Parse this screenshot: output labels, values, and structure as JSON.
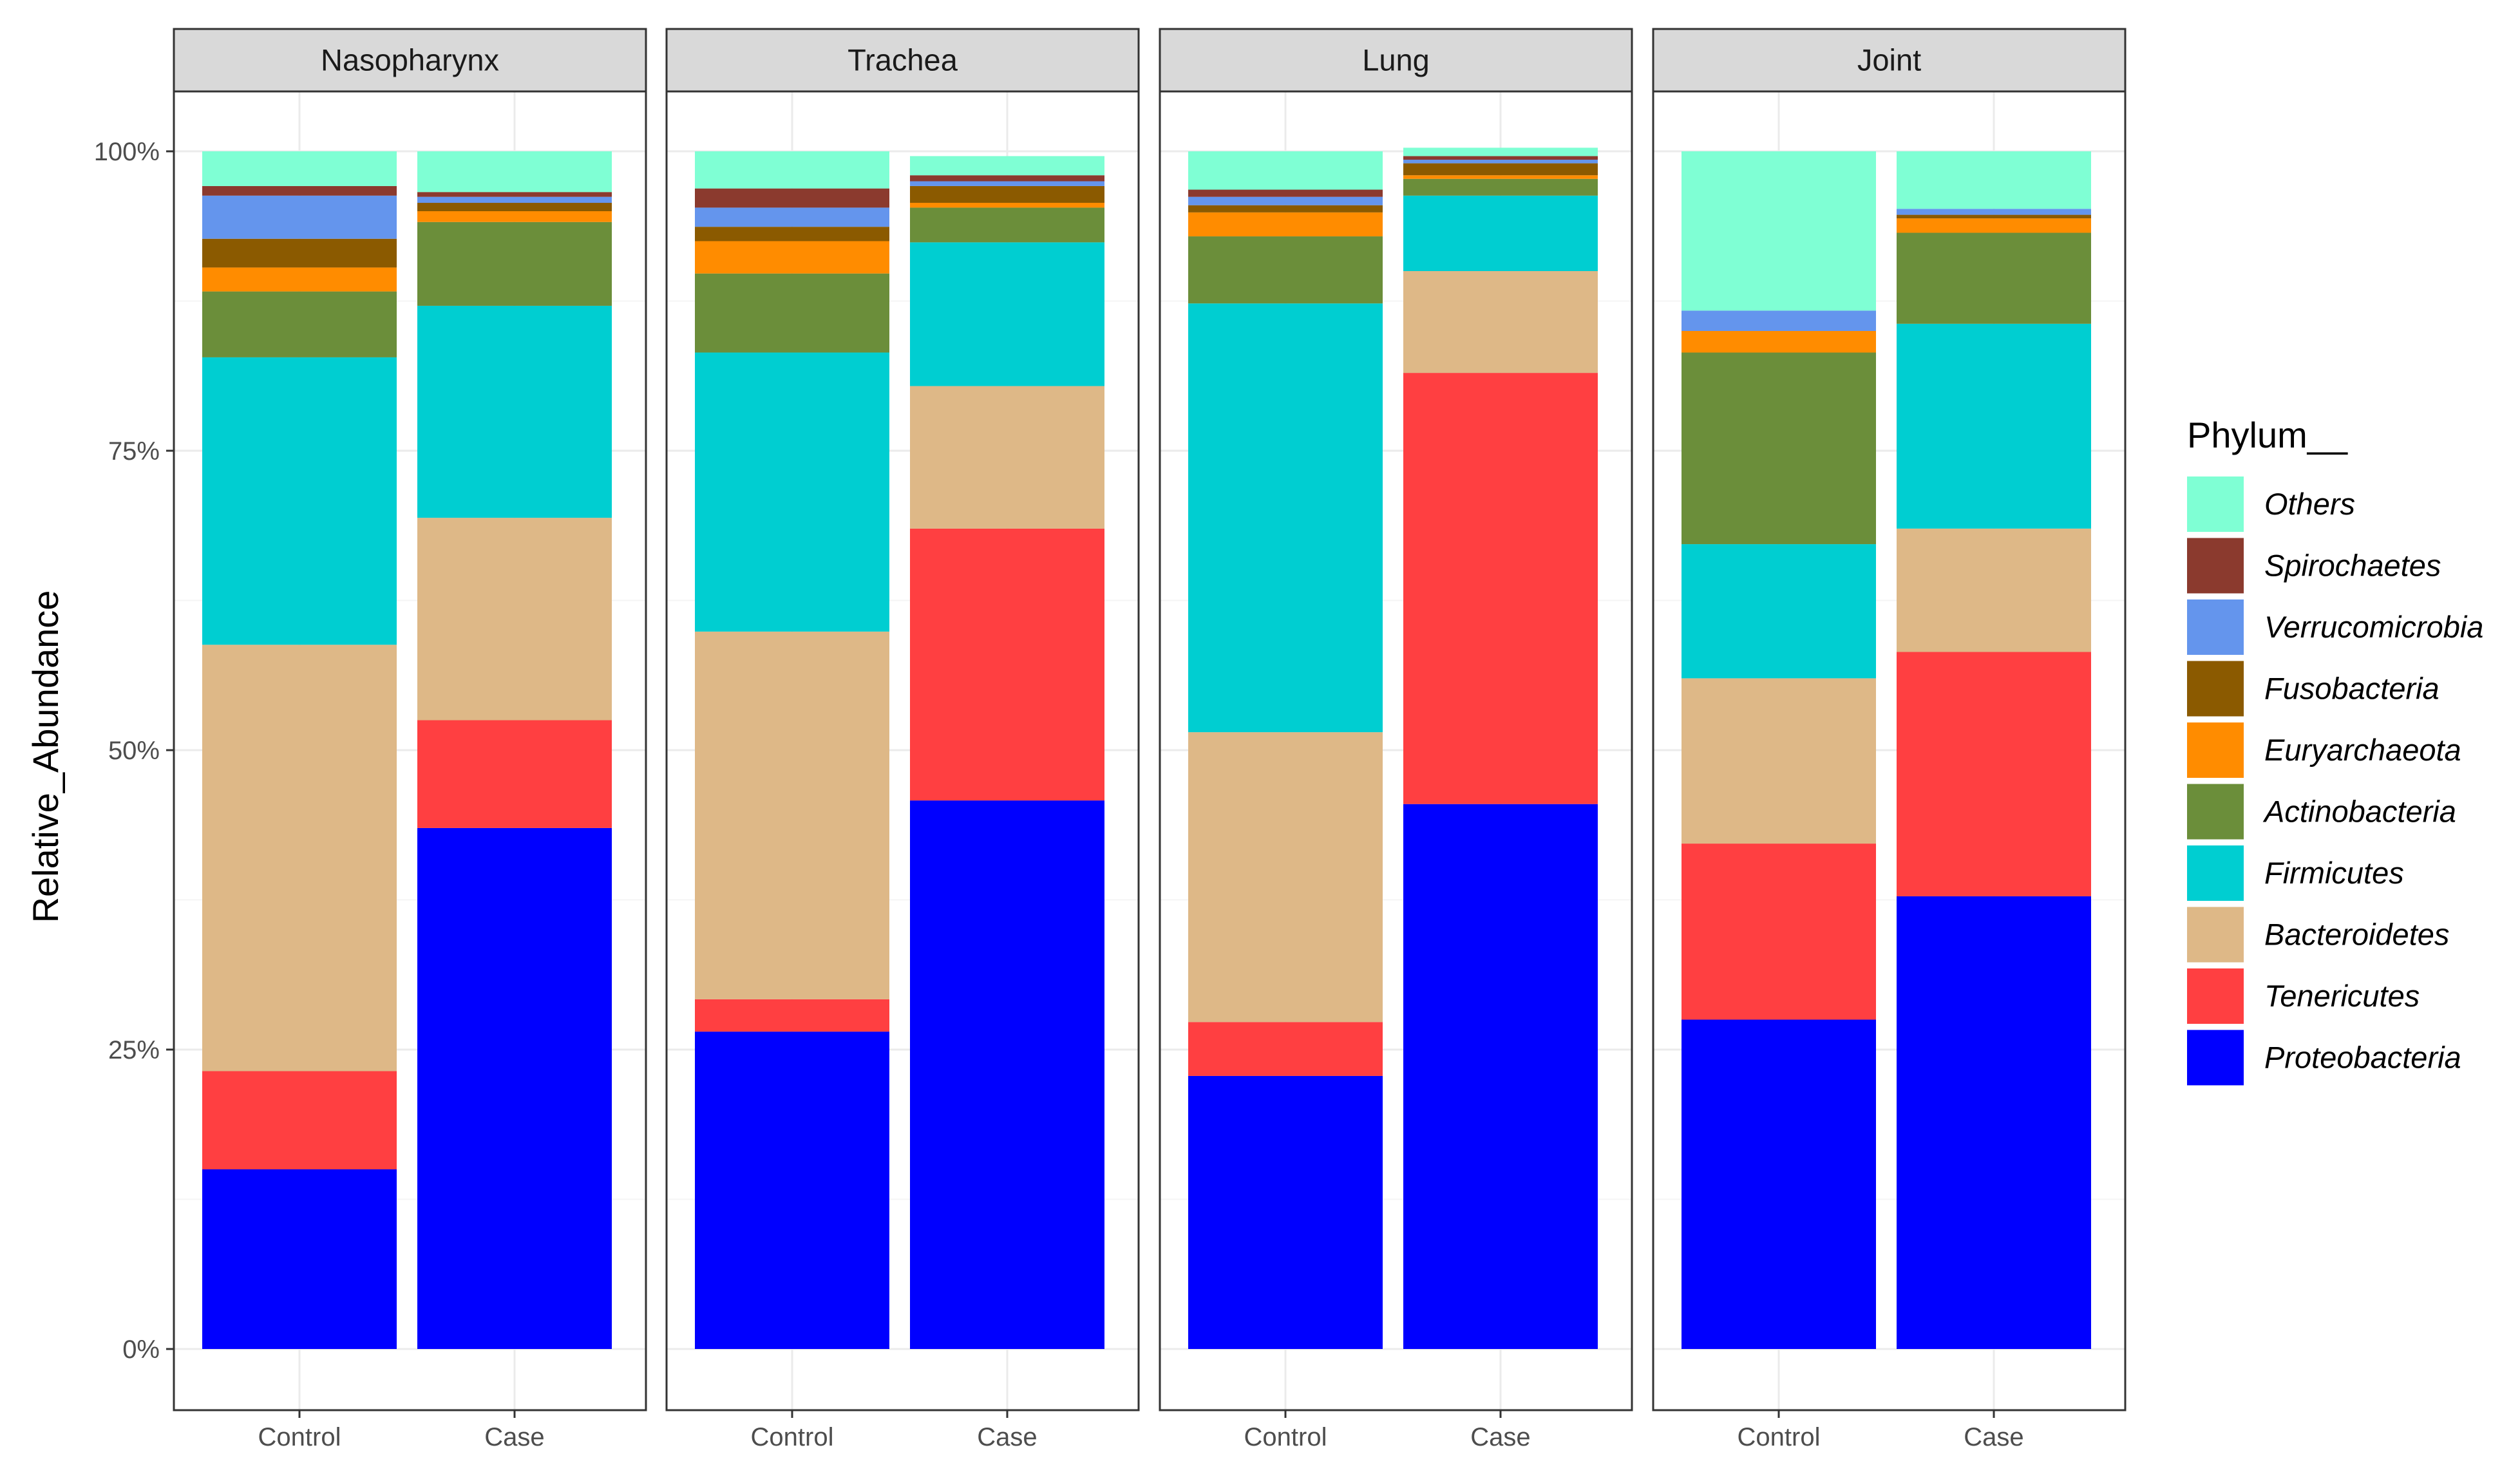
{
  "chart_data": {
    "type": "bar",
    "stacked": true,
    "facets": [
      "Nasopharynx",
      "Trachea",
      "Lung",
      "Joint"
    ],
    "categories": [
      "Control",
      "Case"
    ],
    "ylabel": "Relative_Abundance",
    "xlabel": "",
    "ylim": [
      0,
      100
    ],
    "y_ticks": [
      0,
      25,
      50,
      75,
      100
    ],
    "y_tick_labels": [
      "0%",
      "25%",
      "50%",
      "75%",
      "100%"
    ],
    "grid": true,
    "legend": {
      "title": "Phylum__",
      "position": "right"
    },
    "series": [
      {
        "name": "Proteobacteria",
        "color": "#0000FF",
        "values": {
          "Nasopharynx": {
            "Control": 15.0,
            "Case": 43.5
          },
          "Trachea": {
            "Control": 26.5,
            "Case": 45.8
          },
          "Lung": {
            "Control": 22.8,
            "Case": 45.5
          },
          "Joint": {
            "Control": 27.5,
            "Case": 37.8
          }
        }
      },
      {
        "name": "Tenericutes",
        "color": "#FF3F41",
        "values": {
          "Nasopharynx": {
            "Control": 8.2,
            "Case": 9.0
          },
          "Trachea": {
            "Control": 2.7,
            "Case": 22.7
          },
          "Lung": {
            "Control": 4.5,
            "Case": 36.0
          },
          "Joint": {
            "Control": 14.7,
            "Case": 20.4
          }
        }
      },
      {
        "name": "Bacteroidetes",
        "color": "#DEB887",
        "values": {
          "Nasopharynx": {
            "Control": 35.6,
            "Case": 16.9
          },
          "Trachea": {
            "Control": 30.7,
            "Case": 11.9
          },
          "Lung": {
            "Control": 24.2,
            "Case": 8.5
          },
          "Joint": {
            "Control": 13.8,
            "Case": 10.3
          }
        }
      },
      {
        "name": "Firmicutes",
        "color": "#00CED1",
        "values": {
          "Nasopharynx": {
            "Control": 24.0,
            "Case": 17.7
          },
          "Trachea": {
            "Control": 23.3,
            "Case": 12.0
          },
          "Lung": {
            "Control": 35.8,
            "Case": 6.3
          },
          "Joint": {
            "Control": 11.2,
            "Case": 17.1
          }
        }
      },
      {
        "name": "Actinobacteria",
        "color": "#6B8E3A",
        "values": {
          "Nasopharynx": {
            "Control": 5.5,
            "Case": 7.0
          },
          "Trachea": {
            "Control": 6.6,
            "Case": 2.9
          },
          "Lung": {
            "Control": 5.6,
            "Case": 1.4
          },
          "Joint": {
            "Control": 16.0,
            "Case": 7.6
          }
        }
      },
      {
        "name": "Euryarchaeota",
        "color": "#FF8C00",
        "values": {
          "Nasopharynx": {
            "Control": 2.0,
            "Case": 0.9
          },
          "Trachea": {
            "Control": 2.7,
            "Case": 0.4
          },
          "Lung": {
            "Control": 2.0,
            "Case": 0.3
          },
          "Joint": {
            "Control": 1.8,
            "Case": 1.2
          }
        }
      },
      {
        "name": "Fusobacteria",
        "color": "#8B5A00",
        "values": {
          "Nasopharynx": {
            "Control": 2.4,
            "Case": 0.7
          },
          "Trachea": {
            "Control": 1.2,
            "Case": 1.4
          },
          "Lung": {
            "Control": 0.6,
            "Case": 1.0
          },
          "Joint": {
            "Control": 0.0,
            "Case": 0.3
          }
        }
      },
      {
        "name": "Verrucomicrobia",
        "color": "#6495ED",
        "values": {
          "Nasopharynx": {
            "Control": 3.6,
            "Case": 0.5
          },
          "Trachea": {
            "Control": 1.6,
            "Case": 0.4
          },
          "Lung": {
            "Control": 0.7,
            "Case": 0.3
          },
          "Joint": {
            "Control": 1.7,
            "Case": 0.5
          }
        }
      },
      {
        "name": "Spirochaetes",
        "color": "#8B3A2E",
        "values": {
          "Nasopharynx": {
            "Control": 0.8,
            "Case": 0.4
          },
          "Trachea": {
            "Control": 1.6,
            "Case": 0.5
          },
          "Lung": {
            "Control": 0.6,
            "Case": 0.3
          },
          "Joint": {
            "Control": 0.0,
            "Case": 0.0
          }
        }
      },
      {
        "name": "Others",
        "color": "#7FFFD4",
        "values": {
          "Nasopharynx": {
            "Control": 2.9,
            "Case": 3.4
          },
          "Trachea": {
            "Control": 3.1,
            "Case": 1.6
          },
          "Lung": {
            "Control": 3.2,
            "Case": 0.7
          },
          "Joint": {
            "Control": 13.3,
            "Case": 4.8
          }
        }
      }
    ],
    "legend_order": [
      "Others",
      "Spirochaetes",
      "Verrucomicrobia",
      "Fusobacteria",
      "Euryarchaeota",
      "Actinobacteria",
      "Firmicutes",
      "Bacteroidetes",
      "Tenericutes",
      "Proteobacteria"
    ]
  }
}
